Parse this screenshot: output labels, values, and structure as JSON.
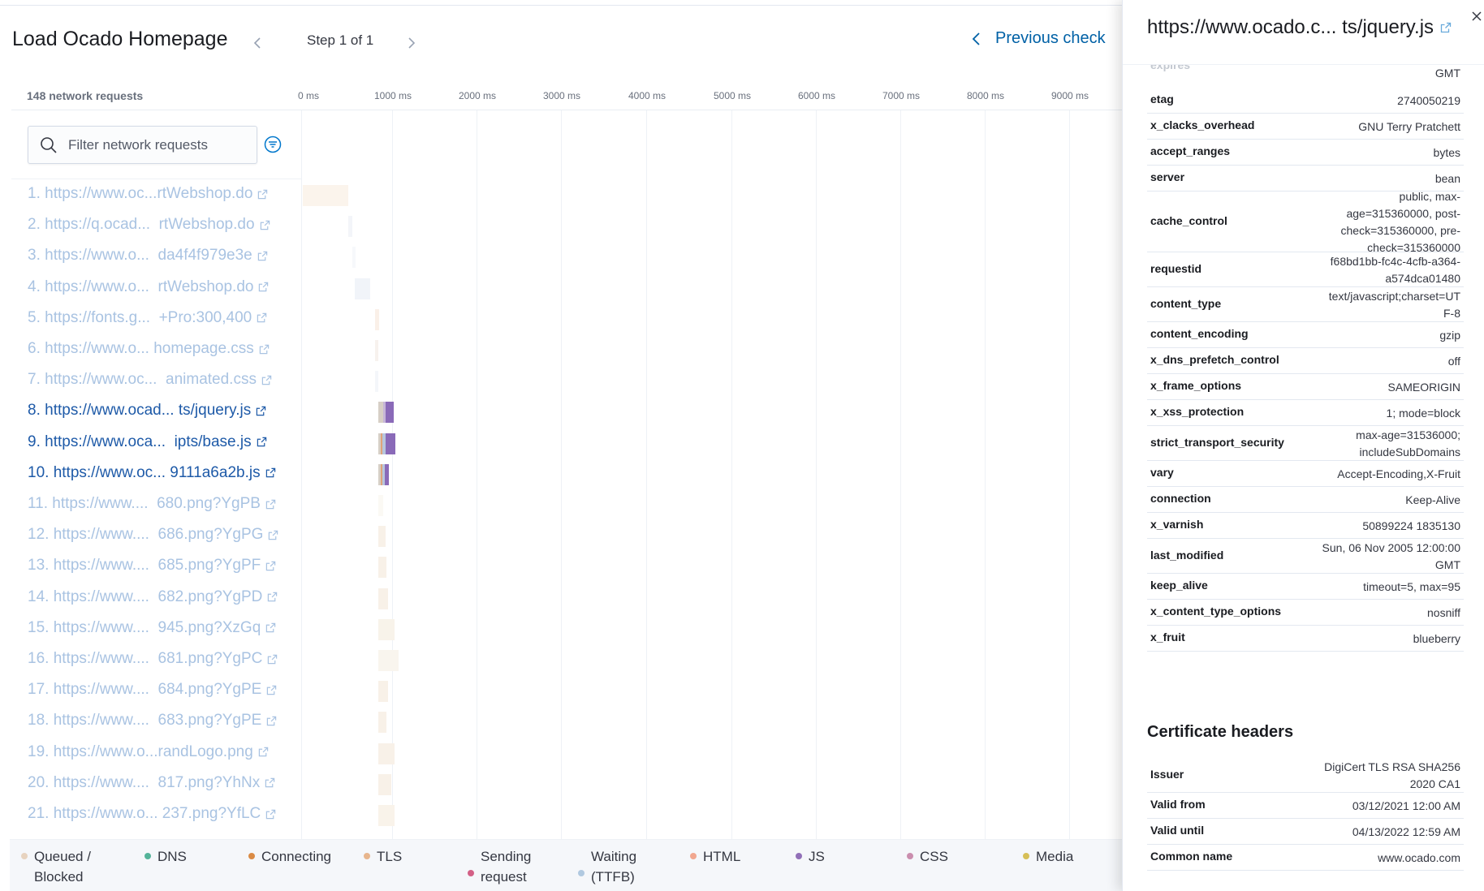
{
  "header": {
    "title": "Load Ocado Homepage",
    "step_label": "Step 1 of 1",
    "previous_check_label": "Previous check"
  },
  "waterfall": {
    "request_count_label": "148 network requests",
    "axis_ticks": [
      "0 ms",
      "1000 ms",
      "2000 ms",
      "3000 ms",
      "4000 ms",
      "5000 ms",
      "6000 ms",
      "7000 ms",
      "8000 ms",
      "9000 ms"
    ],
    "filter_placeholder": "Filter network requests",
    "rows": [
      {
        "label": "1. https://www.oc...rtWebshop.do",
        "active": false
      },
      {
        "label": "2. https://q.ocad...  rtWebshop.do",
        "active": false
      },
      {
        "label": "3. https://www.o...  da4f4f979e3e",
        "active": false
      },
      {
        "label": "4. https://www.o...  rtWebshop.do",
        "active": false
      },
      {
        "label": "5. https://fonts.g...  +Pro:300,400",
        "active": false
      },
      {
        "label": "6. https://www.o... homepage.css",
        "active": false
      },
      {
        "label": "7. https://www.oc...  animated.css",
        "active": false
      },
      {
        "label": "8. https://www.ocad... ts/jquery.js",
        "active": true
      },
      {
        "label": "9. https://www.oca...  ipts/base.js",
        "active": true
      },
      {
        "label": "10. https://www.oc... 9111a6a2b.js",
        "active": true
      },
      {
        "label": "11. https://www....  680.png?YgPB",
        "active": false
      },
      {
        "label": "12. https://www....  686.png?YgPG",
        "active": false
      },
      {
        "label": "13. https://www....  685.png?YgPF",
        "active": false
      },
      {
        "label": "14. https://www....  682.png?YgPD",
        "active": false
      },
      {
        "label": "15. https://www....  945.png?XzGq",
        "active": false
      },
      {
        "label": "16. https://www....  681.png?YgPC",
        "active": false
      },
      {
        "label": "17. https://www....  684.png?YgPE",
        "active": false
      },
      {
        "label": "18. https://www....  683.png?YgPE",
        "active": false
      },
      {
        "label": "19. https://www.o...randLogo.png",
        "active": false
      },
      {
        "label": "20. https://www....  817.png?YhNx",
        "active": false
      },
      {
        "label": "21. https://www.o... 237.png?YfLC",
        "active": false
      }
    ],
    "legend": [
      {
        "label": "Queued /\nBlocked",
        "color": "#e7d3bf"
      },
      {
        "label": "DNS",
        "color": "#54b399"
      },
      {
        "label": "Connecting",
        "color": "#da8b45"
      },
      {
        "label": "TLS",
        "color": "#e7b58d"
      },
      {
        "label": "Sending\nrequest",
        "color": "#d36086"
      },
      {
        "label": "Waiting\n(TTFB)",
        "color": "#b0c9e0"
      },
      {
        "label": "HTML",
        "color": "#f1a78f"
      },
      {
        "label": "JS",
        "color": "#9170b8"
      },
      {
        "label": "CSS",
        "color": "#ca8eae"
      },
      {
        "label": "Media",
        "color": "#d6bf57"
      }
    ]
  },
  "flyout": {
    "title": "https://www.ocado.c... ts/jquery.js",
    "clipped_key": "expires",
    "clipped_value": "GMT",
    "response_headers": [
      {
        "key": "etag",
        "value": "2740050219"
      },
      {
        "key": "x_clacks_overhead",
        "value": "GNU Terry Pratchett"
      },
      {
        "key": "accept_ranges",
        "value": "bytes"
      },
      {
        "key": "server",
        "value": "bean"
      },
      {
        "key": "cache_control",
        "value": "public, max-\nage=315360000, post-\ncheck=315360000, pre-\ncheck=315360000"
      },
      {
        "key": "requestid",
        "value": "f68bd1bb-fc4c-4cfb-a364-\na574dca01480"
      },
      {
        "key": "content_type",
        "value": "text/javascript;charset=UT\nF-8"
      },
      {
        "key": "content_encoding",
        "value": "gzip"
      },
      {
        "key": "x_dns_prefetch_control",
        "value": "off"
      },
      {
        "key": "x_frame_options",
        "value": "SAMEORIGIN"
      },
      {
        "key": "x_xss_protection",
        "value": "1; mode=block"
      },
      {
        "key": "strict_transport_security",
        "value": "max-age=31536000;\nincludeSubDomains"
      },
      {
        "key": "vary",
        "value": "Accept-Encoding,X-Fruit"
      },
      {
        "key": "connection",
        "value": "Keep-Alive"
      },
      {
        "key": "x_varnish",
        "value": "50899224 1835130"
      },
      {
        "key": "last_modified",
        "value": "Sun, 06 Nov 2005 12:00:00\nGMT"
      },
      {
        "key": "keep_alive",
        "value": "timeout=5, max=95"
      },
      {
        "key": "x_content_type_options",
        "value": "nosniff"
      },
      {
        "key": "x_fruit",
        "value": "blueberry"
      }
    ],
    "certificate_title": "Certificate headers",
    "certificate_headers": [
      {
        "key": "Issuer",
        "value": "DigiCert TLS RSA SHA256\n2020 CA1"
      },
      {
        "key": "Valid from",
        "value": "03/12/2021 12:00 AM"
      },
      {
        "key": "Valid until",
        "value": "04/13/2022 12:59 AM"
      },
      {
        "key": "Common name",
        "value": "www.ocado.com"
      }
    ]
  }
}
